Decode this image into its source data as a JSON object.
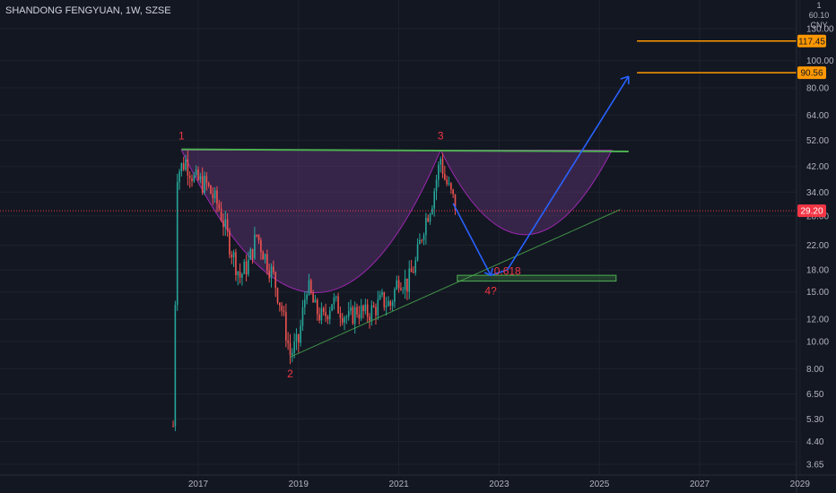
{
  "header": {
    "symbol_title": "SHANDONG FENGYUAN, 1W, SZSE"
  },
  "scale": {
    "currency_line1": "1 60.10",
    "currency_line2": "CNY"
  },
  "colors": {
    "background": "#131722",
    "up_candle": "#26a69a",
    "down_candle": "#ef5350",
    "cup_fill": "#7b3f91",
    "cup_stroke": "#9c27b0",
    "resistance_line": "#4caf50",
    "trend_line": "#4caf50",
    "projection_arrow": "#2962ff",
    "target_line": "#ff9800",
    "annotation_text": "#f23645",
    "price_line": "#f23645"
  },
  "chart_data": {
    "type": "candlestick",
    "y_scale": "log",
    "y_ticks": [
      "130.00",
      "100.00",
      "80.00",
      "64.00",
      "52.00",
      "42.00",
      "34.00",
      "28.00",
      "22.00",
      "18.00",
      "15.00",
      "12.00",
      "10.00",
      "8.00",
      "6.50",
      "5.30",
      "4.40",
      "3.65"
    ],
    "x_ticks": [
      "2017",
      "2019",
      "2021",
      "2023",
      "2025",
      "2027",
      "2029"
    ],
    "current_price": "29.20",
    "price_labels": [
      {
        "value": "117.45",
        "color": "#ff9800"
      },
      {
        "value": "90.56",
        "color": "#ff9800"
      },
      {
        "value": "29.20",
        "color": "#f23645"
      }
    ],
    "annotations": [
      {
        "label": "1",
        "date": "2016-09",
        "price": 48
      },
      {
        "label": "2",
        "date": "2018-11",
        "price": 8.5
      },
      {
        "label": "3",
        "date": "2021-11",
        "price": 48
      },
      {
        "label": "4?",
        "date": "2022-11",
        "price": 17
      },
      {
        "label": "0.618",
        "date": "2023-03",
        "price": 17.8
      }
    ],
    "price_path": [
      [
        "2016-07",
        5
      ],
      [
        "2016-08",
        40
      ],
      [
        "2016-10",
        44
      ],
      [
        "2016-12",
        38
      ],
      [
        "2017-03",
        36
      ],
      [
        "2017-06",
        30
      ],
      [
        "2017-09",
        21
      ],
      [
        "2017-11",
        17
      ],
      [
        "2018-01",
        19
      ],
      [
        "2018-03",
        24
      ],
      [
        "2018-05",
        20
      ],
      [
        "2018-07",
        17
      ],
      [
        "2018-09",
        13
      ],
      [
        "2018-11",
        9
      ],
      [
        "2019-01",
        10
      ],
      [
        "2019-03",
        16
      ],
      [
        "2019-05",
        13
      ],
      [
        "2019-07",
        12
      ],
      [
        "2019-09",
        14
      ],
      [
        "2019-11",
        13
      ],
      [
        "2020-01",
        12
      ],
      [
        "2020-03",
        13
      ],
      [
        "2020-05",
        12.5
      ],
      [
        "2020-07",
        13
      ],
      [
        "2020-09",
        14
      ],
      [
        "2020-11",
        13.5
      ],
      [
        "2021-01",
        17
      ],
      [
        "2021-03",
        16
      ],
      [
        "2021-05",
        19
      ],
      [
        "2021-07",
        26
      ],
      [
        "2021-09",
        32
      ],
      [
        "2021-11",
        45
      ],
      [
        "2021-12",
        38
      ],
      [
        "2022-02",
        32
      ],
      [
        "2022-03",
        29
      ]
    ]
  }
}
